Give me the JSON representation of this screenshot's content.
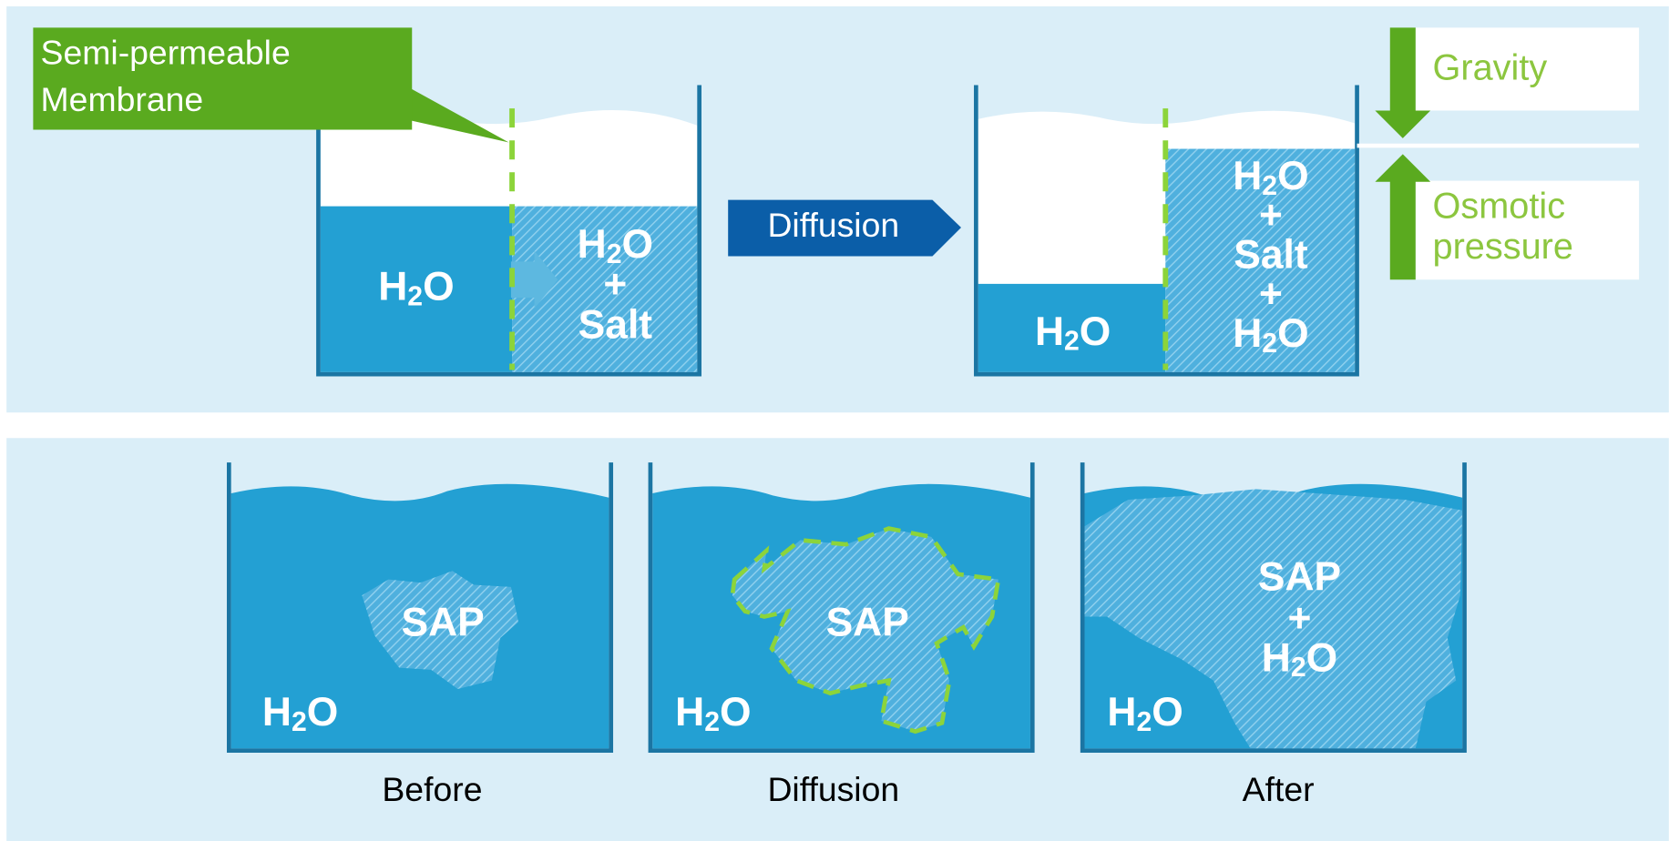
{
  "top": {
    "membrane_label": [
      "Semi-permeable",
      "Membrane"
    ],
    "diffusion_label": "Diffusion",
    "tank1": {
      "left": {
        "base": "H",
        "sub": "2",
        "rest": "O"
      },
      "right": [
        {
          "base": "H",
          "sub": "2",
          "rest": "O"
        },
        "+",
        "Salt"
      ]
    },
    "tank2": {
      "left": {
        "base": "H",
        "sub": "2",
        "rest": "O"
      },
      "right": [
        {
          "base": "H",
          "sub": "2",
          "rest": "O"
        },
        "+",
        "Salt",
        "+",
        {
          "base": "H",
          "sub": "2",
          "rest": "O"
        }
      ]
    },
    "gravity": "Gravity",
    "osmotic": [
      "Osmotic",
      "pressure"
    ]
  },
  "bottom": {
    "panels": [
      {
        "content": [
          "SAP"
        ],
        "water": {
          "base": "H",
          "sub": "2",
          "rest": "O"
        },
        "caption": "Before"
      },
      {
        "content": [
          "SAP"
        ],
        "water": {
          "base": "H",
          "sub": "2",
          "rest": "O"
        },
        "caption": "Diffusion"
      },
      {
        "content": [
          "SAP",
          "+",
          {
            "base": "H",
            "sub": "2",
            "rest": "O"
          }
        ],
        "water": {
          "base": "H",
          "sub": "2",
          "rest": "O"
        },
        "caption": "After"
      }
    ]
  }
}
